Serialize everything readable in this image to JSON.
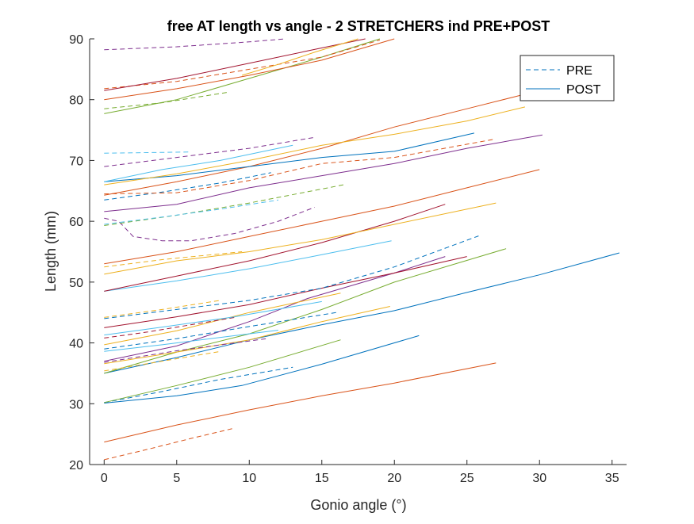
{
  "chart_data": {
    "type": "line",
    "title": "free AT length vs angle - 2 STRETCHERS ind PRE+POST",
    "xlabel": "Gonio angle (°)",
    "ylabel": "Length (mm)",
    "xlim": [
      -1,
      36
    ],
    "ylim": [
      20,
      90
    ],
    "xticks": [
      0,
      5,
      10,
      15,
      20,
      25,
      30,
      35
    ],
    "yticks": [
      20,
      30,
      40,
      50,
      60,
      70,
      80,
      90
    ],
    "grid": false,
    "legend": {
      "position": "top-right",
      "entries": [
        {
          "label": "PRE",
          "style": "dashed",
          "color": "#0072BD"
        },
        {
          "label": "POST",
          "style": "solid",
          "color": "#0072BD"
        }
      ]
    },
    "series": [
      {
        "color": "#D95319",
        "style": "dashed",
        "x": [
          0,
          3,
          6,
          9
        ],
        "y": [
          20.8,
          22.5,
          24.3,
          26.0
        ]
      },
      {
        "color": "#D95319",
        "style": "solid",
        "x": [
          0,
          5,
          10,
          15,
          20,
          27
        ],
        "y": [
          23.7,
          26.5,
          29.0,
          31.3,
          33.4,
          36.7
        ]
      },
      {
        "color": "#0072BD",
        "style": "dashed",
        "x": [
          0,
          4,
          8,
          13
        ],
        "y": [
          30.2,
          32.0,
          34.0,
          36.0
        ]
      },
      {
        "color": "#0072BD",
        "style": "solid",
        "x": [
          0,
          5,
          9.5,
          15,
          21.7
        ],
        "y": [
          30.1,
          31.3,
          33.0,
          36.5,
          41.2
        ]
      },
      {
        "color": "#77AC30",
        "style": "solid",
        "x": [
          0,
          5,
          10,
          16.3
        ],
        "y": [
          30.2,
          33.0,
          36.0,
          40.5
        ]
      },
      {
        "color": "#0072BD",
        "style": "solid",
        "x": [
          0,
          5,
          10,
          15,
          20,
          25,
          30,
          35.5
        ],
        "y": [
          35.0,
          37.6,
          40.5,
          43.0,
          45.3,
          48.3,
          51.2,
          54.8
        ]
      },
      {
        "color": "#77AC30",
        "style": "solid",
        "x": [
          0,
          5,
          10,
          15,
          20,
          27.7
        ],
        "y": [
          35.0,
          38.5,
          41.5,
          45.5,
          50.0,
          55.5
        ]
      },
      {
        "color": "#EDB120",
        "style": "dashed",
        "x": [
          0,
          4,
          8
        ],
        "y": [
          35.4,
          37.0,
          38.6
        ]
      },
      {
        "color": "#EDB120",
        "style": "solid",
        "x": [
          0,
          5,
          10,
          15,
          19.7
        ],
        "y": [
          36.6,
          38.5,
          40.5,
          43.5,
          46.0
        ]
      },
      {
        "color": "#7E2F8E",
        "style": "solid",
        "x": [
          0,
          5,
          10,
          14,
          20,
          23.5
        ],
        "y": [
          37.0,
          39.5,
          43.5,
          47.3,
          51.5,
          54.2
        ]
      },
      {
        "color": "#7E2F8E",
        "style": "dashed",
        "x": [
          0,
          5,
          11.2
        ],
        "y": [
          36.8,
          38.7,
          40.7
        ]
      },
      {
        "color": "#4DBEEE",
        "style": "solid",
        "x": [
          0,
          4,
          9,
          12
        ],
        "y": [
          38.6,
          39.7,
          41.2,
          42.1
        ]
      },
      {
        "color": "#0072BD",
        "style": "dashed",
        "x": [
          0,
          5,
          10,
          16
        ],
        "y": [
          39.0,
          40.7,
          42.7,
          45.0
        ]
      },
      {
        "color": "#EDB120",
        "style": "solid",
        "x": [
          0,
          5,
          10,
          16.3
        ],
        "y": [
          39.7,
          42.0,
          45.0,
          48.2
        ]
      },
      {
        "color": "#A2142F",
        "style": "dashed",
        "x": [
          0,
          3,
          6,
          9
        ],
        "y": [
          40.8,
          41.8,
          43.0,
          44.2
        ]
      },
      {
        "color": "#4DBEEE",
        "style": "solid",
        "x": [
          0,
          4,
          9,
          15
        ],
        "y": [
          41.3,
          42.6,
          44.3,
          46.8
        ]
      },
      {
        "color": "#A2142F",
        "style": "solid",
        "x": [
          0,
          5,
          10,
          15,
          20,
          25
        ],
        "y": [
          42.5,
          44.3,
          46.3,
          49.0,
          51.5,
          54.2
        ]
      },
      {
        "color": "#0072BD",
        "style": "dashed",
        "x": [
          0,
          5,
          10,
          15,
          20,
          25.8
        ],
        "y": [
          44.0,
          45.5,
          47.0,
          49.0,
          52.5,
          57.6
        ]
      },
      {
        "color": "#EDB120",
        "style": "dashed",
        "x": [
          0,
          4,
          8
        ],
        "y": [
          44.2,
          45.5,
          47.0
        ]
      },
      {
        "color": "#4DBEEE",
        "style": "solid",
        "x": [
          0,
          5,
          10,
          15,
          19.8
        ],
        "y": [
          48.5,
          50.2,
          52.2,
          54.5,
          56.8
        ]
      },
      {
        "color": "#A2142F",
        "style": "solid",
        "x": [
          0,
          5,
          10,
          15,
          20,
          23.5
        ],
        "y": [
          48.5,
          51.0,
          53.5,
          56.5,
          60.0,
          62.8
        ]
      },
      {
        "color": "#EDB120",
        "style": "solid",
        "x": [
          0,
          5,
          10,
          15,
          20,
          27
        ],
        "y": [
          51.3,
          53.5,
          55.0,
          57.0,
          59.5,
          63.0
        ]
      },
      {
        "color": "#EDB120",
        "style": "dashed",
        "x": [
          0,
          4,
          9.5
        ],
        "y": [
          52.5,
          53.7,
          55.0
        ]
      },
      {
        "color": "#7E2F8E",
        "style": "dashed",
        "x": [
          0,
          1,
          2,
          4,
          6,
          9,
          12,
          14.5
        ],
        "y": [
          60.5,
          60.0,
          57.5,
          56.8,
          56.8,
          58.0,
          60.0,
          62.3
        ]
      },
      {
        "color": "#D95319",
        "style": "solid",
        "x": [
          0,
          5,
          10,
          15,
          20,
          25,
          30
        ],
        "y": [
          53.0,
          55.0,
          57.5,
          60.0,
          62.5,
          65.5,
          68.5
        ]
      },
      {
        "color": "#77AC30",
        "style": "dashed",
        "x": [
          0,
          5,
          10,
          16.5
        ],
        "y": [
          59.3,
          61.0,
          63.0,
          66.0
        ]
      },
      {
        "color": "#4DBEEE",
        "style": "dashed",
        "x": [
          0,
          4,
          8,
          12
        ],
        "y": [
          59.5,
          60.7,
          62.0,
          63.5
        ]
      },
      {
        "color": "#7E2F8E",
        "style": "solid",
        "x": [
          0,
          5,
          10,
          15,
          20,
          25,
          30.2
        ],
        "y": [
          61.6,
          62.8,
          65.5,
          67.5,
          69.5,
          72.0,
          74.2
        ]
      },
      {
        "color": "#0072BD",
        "style": "dashed",
        "x": [
          0,
          4,
          8,
          11.5
        ],
        "y": [
          63.5,
          64.8,
          66.3,
          68.0
        ]
      },
      {
        "color": "#D95319",
        "style": "solid",
        "x": [
          0,
          5,
          10,
          15,
          20,
          25,
          30,
          32
        ],
        "y": [
          64.3,
          66.5,
          69.0,
          72.0,
          75.5,
          78.5,
          81.5,
          82.8
        ]
      },
      {
        "color": "#D95319",
        "style": "dashed",
        "x": [
          0,
          5,
          10,
          15,
          20,
          26.9
        ],
        "y": [
          64.5,
          64.7,
          66.7,
          69.5,
          70.5,
          73.5
        ]
      },
      {
        "color": "#0072BD",
        "style": "solid",
        "x": [
          0,
          5,
          10,
          15,
          20,
          25.5
        ],
        "y": [
          66.5,
          67.5,
          69.0,
          70.5,
          71.5,
          74.5
        ]
      },
      {
        "color": "#EDB120",
        "style": "solid",
        "x": [
          0,
          5,
          10,
          15,
          20,
          25,
          29
        ],
        "y": [
          66.0,
          67.8,
          70.0,
          72.5,
          74.3,
          76.5,
          78.8
        ]
      },
      {
        "color": "#4DBEEE",
        "style": "solid",
        "x": [
          0,
          4,
          8,
          13
        ],
        "y": [
          66.5,
          68.5,
          70.0,
          72.5
        ]
      },
      {
        "color": "#7E2F8E",
        "style": "dashed",
        "x": [
          0,
          5,
          10,
          14.5
        ],
        "y": [
          69.0,
          70.5,
          72.0,
          73.8
        ]
      },
      {
        "color": "#4DBEEE",
        "style": "dashed",
        "x": [
          0,
          3,
          6
        ],
        "y": [
          71.2,
          71.3,
          71.4
        ]
      },
      {
        "color": "#77AC30",
        "style": "solid",
        "x": [
          0,
          5,
          10,
          15,
          19
        ],
        "y": [
          77.7,
          80.0,
          83.5,
          87.0,
          90.0
        ]
      },
      {
        "color": "#77AC30",
        "style": "dashed",
        "x": [
          0,
          4,
          8.5
        ],
        "y": [
          78.5,
          79.5,
          81.2
        ]
      },
      {
        "color": "#D95319",
        "style": "solid",
        "x": [
          0,
          5,
          10,
          15,
          20
        ],
        "y": [
          80.0,
          81.8,
          84.0,
          86.5,
          90.0
        ]
      },
      {
        "color": "#D95319",
        "style": "dashed",
        "x": [
          0,
          5,
          10,
          15,
          19
        ],
        "y": [
          81.8,
          83.0,
          85.0,
          87.0,
          89.8
        ]
      },
      {
        "color": "#A2142F",
        "style": "solid",
        "x": [
          0,
          5,
          10,
          14,
          18
        ],
        "y": [
          81.5,
          83.5,
          86.0,
          88.0,
          90.0
        ]
      },
      {
        "color": "#7E2F8E",
        "style": "dashed",
        "x": [
          0,
          5,
          10,
          12.5
        ],
        "y": [
          88.2,
          88.7,
          89.5,
          90.0
        ]
      },
      {
        "color": "#EDB120",
        "style": "solid",
        "x": [
          9.5,
          12,
          14.5,
          17.5
        ],
        "y": [
          84.0,
          85.8,
          87.8,
          90.0
        ]
      }
    ]
  }
}
